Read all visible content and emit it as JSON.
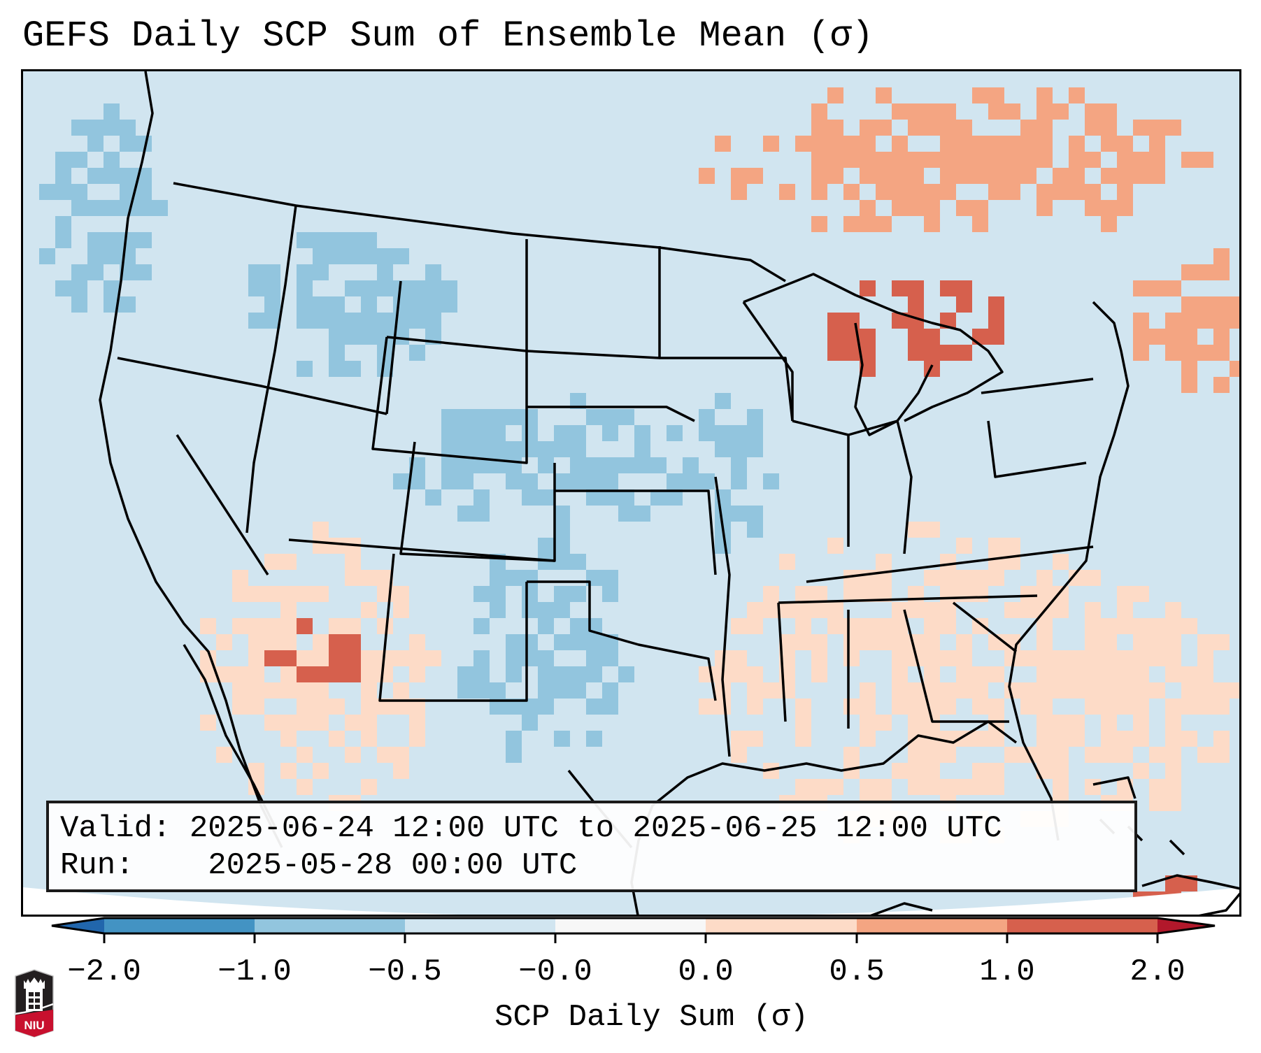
{
  "title": "GEFS Daily SCP Sum of Ensemble Mean (σ)",
  "info_box": {
    "valid_label": "Valid:",
    "valid_value": "2025-06-24 12:00 UTC to 2025-06-25 12:00 UTC",
    "run_label": "Run:",
    "run_value": "2025-05-28 00:00 UTC"
  },
  "colorbar": {
    "label": "SCP Daily Sum (σ)",
    "ticks": [
      "−2.0",
      "−1.0",
      "−0.5",
      "−0.0",
      "0.0",
      "0.5",
      "1.0",
      "2.0"
    ],
    "levels": [
      -2.0,
      -1.0,
      -0.5,
      -0.0,
      0.0,
      0.5,
      1.0,
      2.0
    ],
    "colors": {
      "under": "#2166ac",
      "bins": [
        "#4393c3",
        "#92c5de",
        "#d1e5f0",
        "#f7f7f7",
        "#fddbc7",
        "#f4a582",
        "#d6604d"
      ],
      "over": "#b2182b"
    },
    "extend": "both"
  },
  "logo": {
    "text": "NIU",
    "colors": {
      "shield": "#231f20",
      "band": "#c8102e"
    }
  },
  "map": {
    "projection": "Lambert Conformal (CONUS)",
    "background_value": -0.3,
    "anomaly_regions": [
      {
        "name": "Pacific Northwest offshore",
        "value": -0.75
      },
      {
        "name": "Idaho / Montana / Wyoming",
        "value": -0.75
      },
      {
        "name": "Colorado / Kansas / Nebraska",
        "value": -0.75
      },
      {
        "name": "Missouri",
        "value": -0.75
      },
      {
        "name": "Texas / New Mexico",
        "value": -0.75
      },
      {
        "name": "Southwest / Sonora",
        "value": 0.3
      },
      {
        "name": "Arizona-Mexico border",
        "value": 1.2
      },
      {
        "name": "Great Lakes / Michigan",
        "value": 1.2
      },
      {
        "name": "Ontario / Quebec",
        "value": 0.7
      },
      {
        "name": "New England",
        "value": 0.7
      },
      {
        "name": "Southeast / Gulf",
        "value": 0.3
      },
      {
        "name": "Atlantic offshore",
        "value": 0.3
      },
      {
        "name": "Hispaniola",
        "value": 1.5
      }
    ]
  }
}
